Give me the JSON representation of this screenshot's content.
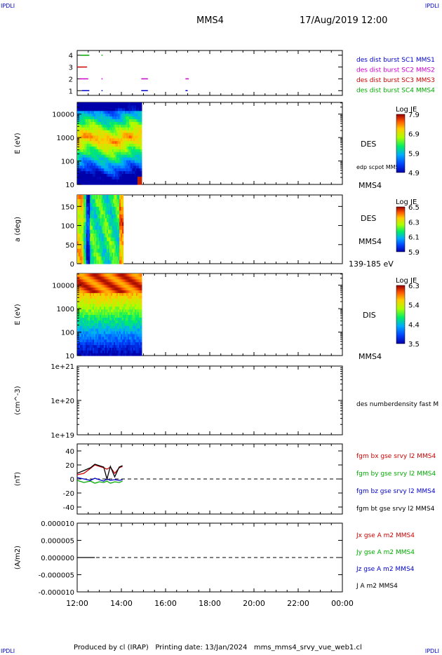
{
  "corner_labels": {
    "top_left": "IPDLI",
    "top_right": "IPDLI",
    "bottom_left": "IPDLI",
    "bottom_right": "IPDLI"
  },
  "header": {
    "spacecraft": "MMS4",
    "datetime": "17/Aug/2019 12:00"
  },
  "footer": {
    "text": "Produced by cl (IRAP)   Printing date: 13/Jan/2024   mms_mms4_srvy_vue_web1.cl"
  },
  "chart_data": [
    {
      "type": "scatter",
      "ylabel": "",
      "yticks": [
        "4",
        "3",
        "2",
        "1"
      ],
      "xlim": [
        "12:00",
        "00:00"
      ],
      "legend": [
        "des dist burst SC1 MMS1",
        "des dist burst SC2 MMS2",
        "des dist burst SC3 MMS3",
        "des dist burst SC4 MMS4"
      ],
      "colors": [
        "#0000cc",
        "#cc00cc",
        "#cc0000",
        "#00aa00"
      ]
    },
    {
      "type": "heatmap",
      "ylabel": "E (eV)",
      "yscale": "log",
      "yticks": [
        "10000",
        "1000",
        "100",
        "10"
      ],
      "xlim": [
        "12:00",
        "00:00"
      ],
      "data_end": "14:55",
      "label_right": "DES",
      "annotation": "edp scpot MMS4",
      "label_bottom_right": "MMS4",
      "colorbar": {
        "title": "Log JE",
        "ticks": [
          "7.9",
          "6.9",
          "5.9",
          "4.9"
        ]
      }
    },
    {
      "type": "heatmap",
      "ylabel": "a (deg)",
      "yticks": [
        "150",
        "100",
        "50",
        "0"
      ],
      "ylim": [
        0,
        180
      ],
      "xlim": [
        "12:00",
        "00:00"
      ],
      "data_end": "14:05",
      "label_right": "DES",
      "label_right2": "MMS4",
      "label_bottom_right": "139-185 eV",
      "colorbar": {
        "title": "Log JE",
        "ticks": [
          "6.5",
          "6.3",
          "6.1",
          "5.9"
        ]
      }
    },
    {
      "type": "heatmap",
      "ylabel": "E (eV)",
      "yscale": "log",
      "yticks": [
        "10000",
        "1000",
        "100",
        "10"
      ],
      "xlim": [
        "12:00",
        "00:00"
      ],
      "data_end": "14:55",
      "label_right": "DIS",
      "label_bottom_right": "MMS4",
      "colorbar": {
        "title": "Log JE",
        "ticks": [
          "6.3",
          "5.4",
          "4.4",
          "3.5"
        ]
      }
    },
    {
      "type": "line",
      "ylabel": "(cm^-3)",
      "yscale": "log",
      "yticks": [
        "1e+21",
        "1e+20",
        "1e+19"
      ],
      "xlim": [
        "12:00",
        "00:00"
      ],
      "legend": [
        "des numberdensity fast M"
      ],
      "series": []
    },
    {
      "type": "line",
      "ylabel": "(nT)",
      "yticks": [
        "40",
        "20",
        "0",
        "-20",
        "-40"
      ],
      "ylim": [
        -50,
        50
      ],
      "xlim": [
        "12:00",
        "00:00"
      ],
      "zero_line": true,
      "legend": [
        "fgm bx gse srvy l2 MMS4",
        "fgm by gse srvy l2 MMS4",
        "fgm bz gse srvy l2 MMS4",
        "fgm bt gse srvy l2 MMS4"
      ],
      "colors": [
        "#cc0000",
        "#00aa00",
        "#0000cc",
        "#000000"
      ],
      "series": [
        {
          "name": "fgm bx gse srvy l2 MMS4",
          "x": [
            12.0,
            12.3,
            12.6,
            12.8,
            13.0,
            13.2,
            13.35,
            13.5,
            13.7,
            13.9,
            14.05
          ],
          "y": [
            6,
            8,
            15,
            20,
            18,
            16,
            14,
            17,
            8,
            16,
            18
          ]
        },
        {
          "name": "fgm by gse srvy l2 MMS4",
          "x": [
            12.0,
            12.3,
            12.6,
            12.8,
            13.0,
            13.2,
            13.35,
            13.5,
            13.7,
            13.9,
            14.05
          ],
          "y": [
            -2,
            -5,
            -3,
            -6,
            -4,
            -5,
            -3,
            -6,
            -4,
            -5,
            -3
          ]
        },
        {
          "name": "fgm bz gse srvy l2 MMS4",
          "x": [
            12.0,
            12.3,
            12.6,
            12.8,
            13.0,
            13.2,
            13.35,
            13.5,
            13.7,
            13.9,
            14.05
          ],
          "y": [
            2,
            0,
            -2,
            1,
            -1,
            -3,
            0,
            -2,
            -1,
            -2,
            -1
          ]
        },
        {
          "name": "fgm bt gse srvy l2 MMS4",
          "x": [
            12.0,
            12.3,
            12.6,
            12.8,
            13.0,
            13.2,
            13.35,
            13.5,
            13.7,
            13.9,
            14.05
          ],
          "y": [
            8,
            12,
            16,
            21,
            19,
            17,
            0,
            18,
            3,
            17,
            19
          ]
        }
      ]
    },
    {
      "type": "line",
      "ylabel": "(A/m2)",
      "yticks": [
        "0.000010",
        "0.000005",
        "0.000000",
        "-0.000005",
        "-0.000010"
      ],
      "ylim": [
        -1e-05,
        1e-05
      ],
      "xlim": [
        "12:00",
        "00:00"
      ],
      "xticks": [
        "12:00",
        "14:00",
        "16:00",
        "18:00",
        "20:00",
        "22:00",
        "00:00"
      ],
      "zero_line": true,
      "legend": [
        "Jx gse A m2 MMS4",
        "Jy gse A m2 MMS4",
        "Jz gse A m2 MMS4",
        "J A m2 MMS4"
      ],
      "colors": [
        "#cc0000",
        "#00aa00",
        "#0000cc",
        "#000000"
      ],
      "series": [
        {
          "name": "J A m2 MMS4",
          "x": [
            12.0,
            12.4,
            12.8
          ],
          "y": [
            0,
            0,
            0
          ]
        }
      ]
    }
  ]
}
